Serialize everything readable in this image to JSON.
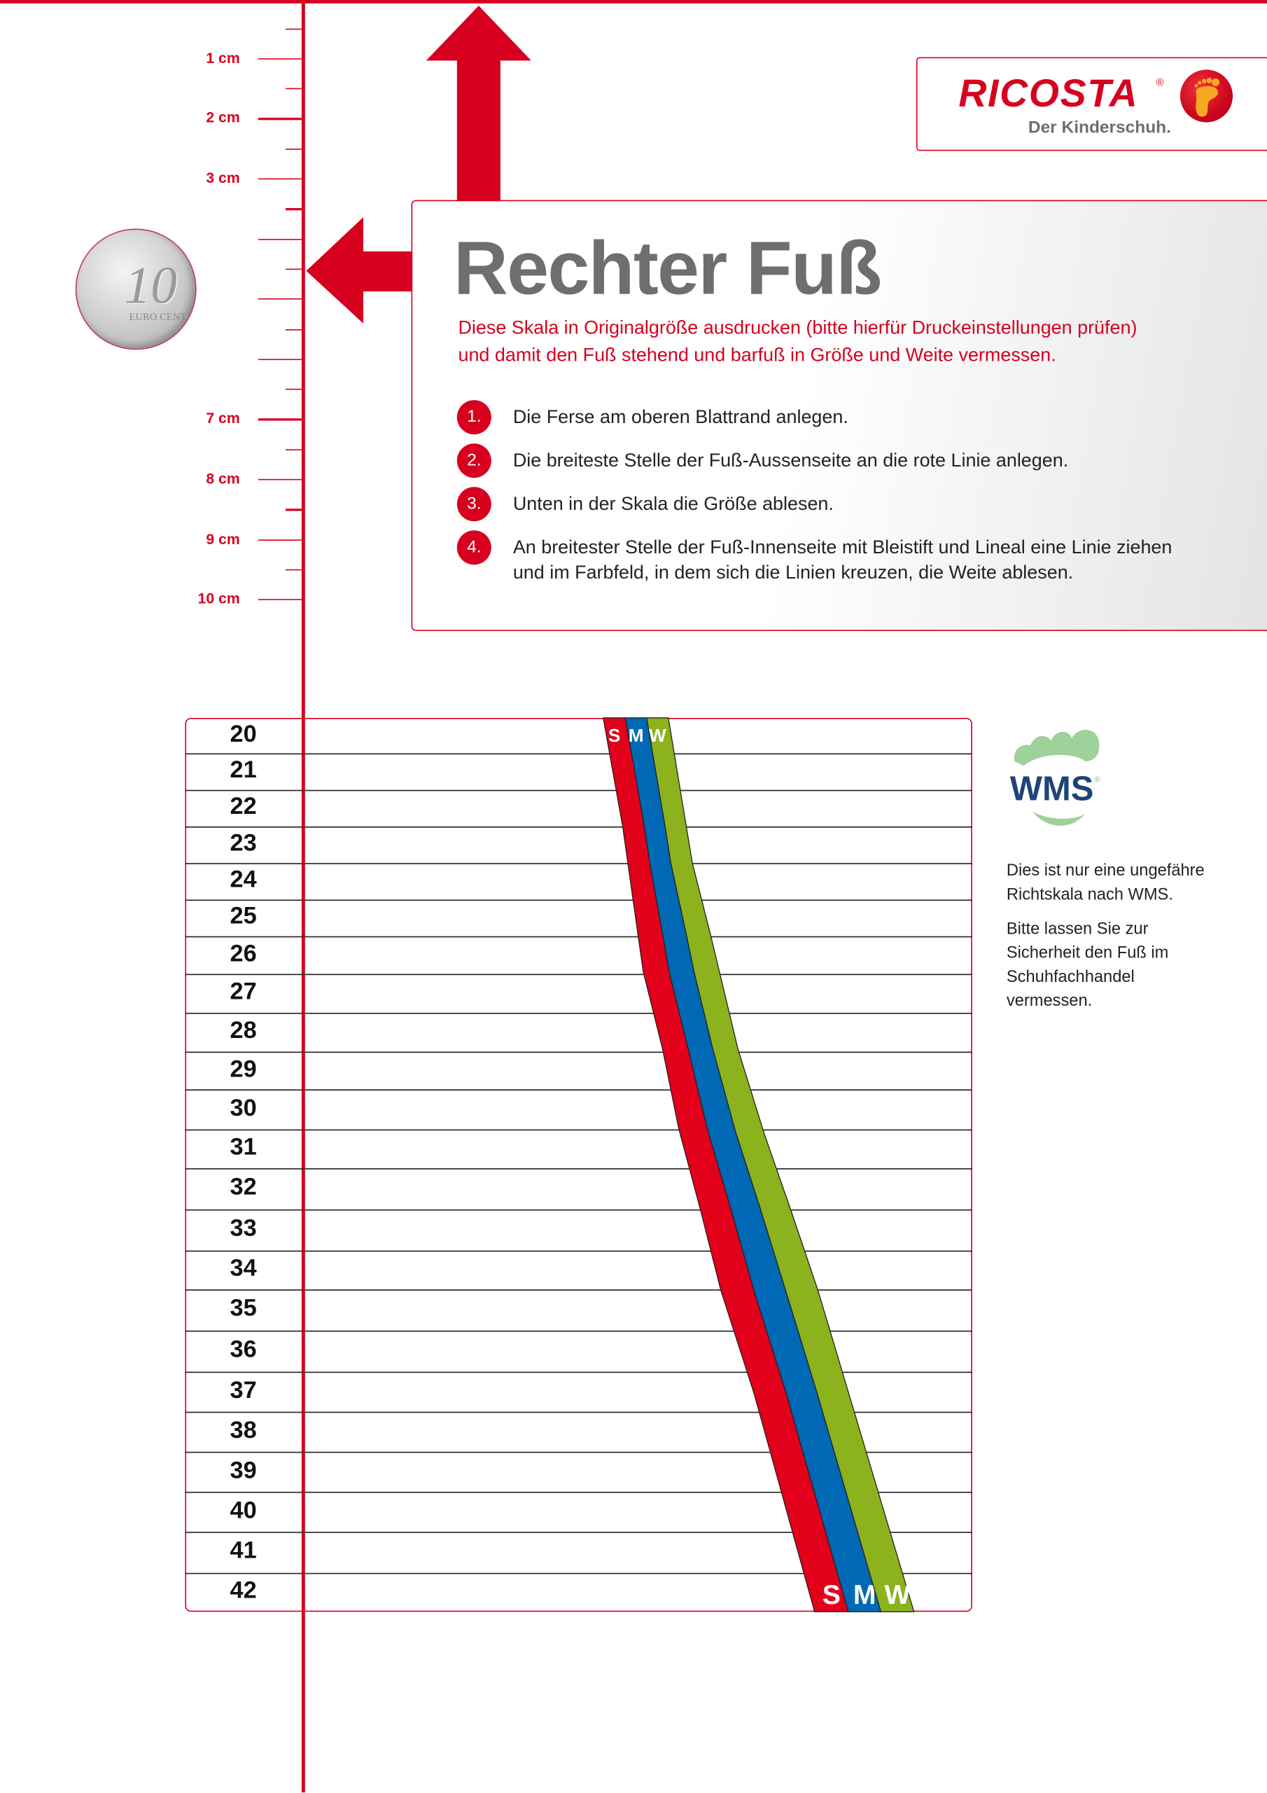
{
  "ruler": {
    "labels": [
      "1 cm",
      "2 cm",
      "3 cm",
      "7 cm",
      "8 cm",
      "9 cm",
      "10 cm"
    ],
    "color": "#d7001e"
  },
  "coin": {
    "value": "10",
    "text": "EURO CENT"
  },
  "logo": {
    "name": "RICOSTA",
    "registered": "®",
    "tagline": "Der Kinderschuh."
  },
  "info": {
    "title": "Rechter Fuß",
    "subtitle_lines": [
      "Diese Skala in Originalgröße ausdrucken (bitte hierfür Druckeinstellungen prüfen)",
      "und damit den Fuß stehend und barfuß in Größe und Weite vermessen."
    ],
    "steps": [
      {
        "num": "1.",
        "text": "Die Ferse am oberen Blattrand anlegen."
      },
      {
        "num": "2.",
        "text": "Die breiteste Stelle der Fuß-Aussenseite an die rote Linie anlegen."
      },
      {
        "num": "3.",
        "text": "Unten in der Skala die Größe ablesen."
      },
      {
        "num": "4.",
        "text": "An breitester Stelle der Fuß-Innenseite mit Bleistift und Lineal eine Linie ziehen und im Farbfeld, in dem sich die Linien kreuzen, die Weite ablesen."
      }
    ]
  },
  "scale": {
    "sizes": [
      "20",
      "21",
      "22",
      "23",
      "24",
      "25",
      "26",
      "27",
      "28",
      "29",
      "30",
      "31",
      "32",
      "33",
      "34",
      "35",
      "36",
      "37",
      "38",
      "39",
      "40",
      "41",
      "42"
    ],
    "widths": [
      {
        "label": "S",
        "color": "#e2001a"
      },
      {
        "label": "M",
        "color": "#0068b4"
      },
      {
        "label": "W",
        "color": "#8cb21e"
      }
    ]
  },
  "wms": {
    "logo_text": "WMS",
    "registered": "®",
    "note_paragraphs": [
      "Dies ist nur eine ungefähre Richtskala nach WMS.",
      "Bitte lassen Sie zur Sicherheit den Fuß im Schuhfachhandel vermessen."
    ]
  }
}
